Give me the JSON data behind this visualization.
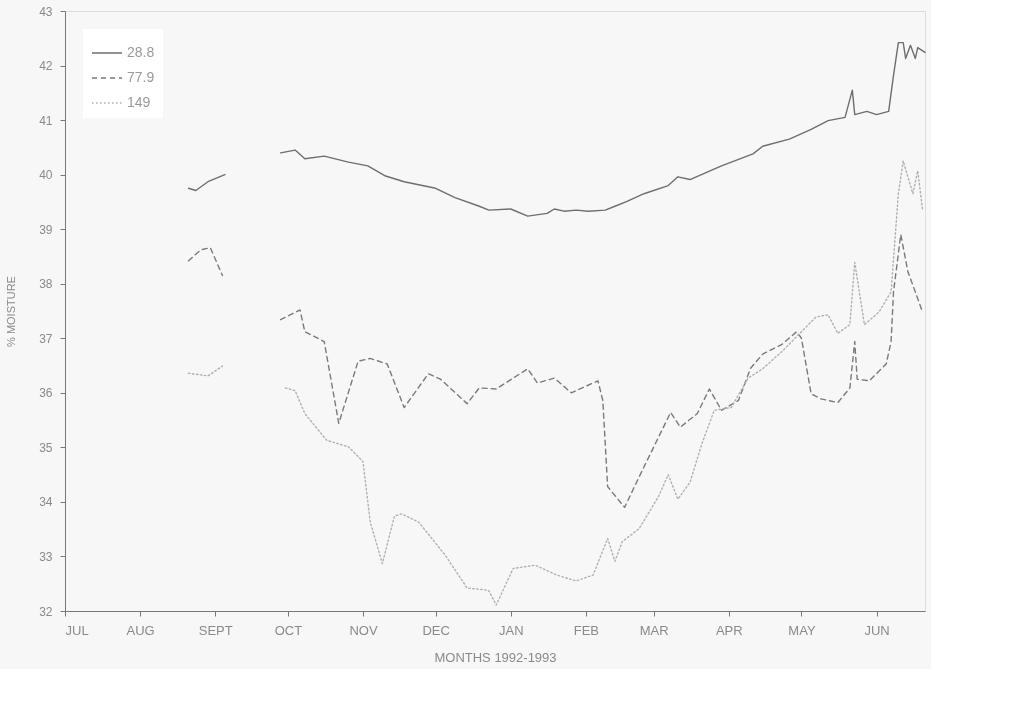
{
  "chart_data": {
    "type": "line",
    "xlabel": "MONTHS 1992-1993",
    "ylabel": "% MOISTURE",
    "xlim": [
      "1992-07-01",
      "1993-06-21"
    ],
    "ylim": [
      32,
      43
    ],
    "xticks": [
      {
        "value": "1992-07-01",
        "label": "JUL"
      },
      {
        "value": "1992-08-01",
        "label": "AUG"
      },
      {
        "value": "1992-09-01",
        "label": "SEPT"
      },
      {
        "value": "1992-10-01",
        "label": "OCT"
      },
      {
        "value": "1992-11-01",
        "label": "NOV"
      },
      {
        "value": "1992-12-01",
        "label": "DEC"
      },
      {
        "value": "1993-01-01",
        "label": "JAN"
      },
      {
        "value": "1993-02-01",
        "label": "FEB"
      },
      {
        "value": "1993-03-01",
        "label": "MAR"
      },
      {
        "value": "1993-04-01",
        "label": "APR"
      },
      {
        "value": "1993-05-01",
        "label": "MAY"
      },
      {
        "value": "1993-06-01",
        "label": "JUN"
      }
    ],
    "yticks": [
      32,
      33,
      34,
      35,
      36,
      37,
      38,
      39,
      40,
      41,
      42,
      43
    ],
    "grid": false,
    "legend": "top left",
    "marker": "none",
    "series": [
      {
        "name": "28.8",
        "color": "#6e6e6e",
        "line_style": "solid",
        "x": [
          "1992-08-21",
          "1992-08-24",
          "1992-08-29",
          "1992-09-05",
          "1992-09-16",
          "1992-09-28",
          "1992-10-04",
          "1992-10-08",
          "1992-10-16",
          "1992-10-26",
          "1992-11-03",
          "1992-11-10",
          "1992-11-18",
          "1992-12-01",
          "1992-12-09",
          "1992-12-19",
          "1992-12-23",
          "1993-01-01",
          "1993-01-08",
          "1993-01-16",
          "1993-01-19",
          "1993-01-23",
          "1993-01-28",
          "1993-02-02",
          "1993-02-09",
          "1993-02-13",
          "1993-02-18",
          "1993-02-25",
          "1993-03-07",
          "1993-03-11",
          "1993-03-16",
          "1993-03-29",
          "1993-04-11",
          "1993-04-15",
          "1993-04-26",
          "1993-05-05",
          "1993-05-12",
          "1993-05-19",
          "1993-05-22",
          "1993-05-23",
          "1993-05-28",
          "1993-06-01",
          "1993-06-06",
          "1993-06-08",
          "1993-06-10",
          "1993-06-12",
          "1993-06-13",
          "1993-06-15",
          "1993-06-17",
          "1993-06-18",
          "1993-06-21"
        ],
        "values": [
          39.75,
          39.71,
          39.87,
          40.0,
          null,
          40.4,
          40.45,
          40.29,
          40.34,
          40.23,
          40.16,
          39.98,
          39.87,
          39.75,
          39.58,
          39.42,
          39.35,
          39.37,
          39.24,
          39.29,
          39.37,
          39.33,
          39.35,
          39.33,
          39.35,
          39.42,
          39.51,
          39.65,
          39.8,
          39.96,
          39.91,
          40.16,
          40.38,
          40.52,
          40.65,
          40.83,
          40.99,
          41.05,
          41.55,
          41.1,
          41.16,
          41.1,
          41.16,
          41.82,
          42.42,
          42.42,
          42.13,
          42.37,
          42.13,
          42.33,
          42.24
        ]
      },
      {
        "name": "77.9",
        "color": "#7a7a7a",
        "line_style": "dashed",
        "x": [
          "1992-08-21",
          "1992-08-26",
          "1992-08-30",
          "1992-09-04",
          "1992-09-16",
          "1992-09-28",
          "1992-10-06",
          "1992-10-08",
          "1992-10-16",
          "1992-10-22",
          "1992-10-30",
          "1992-11-04",
          "1992-11-11",
          "1992-11-18",
          "1992-11-28",
          "1992-12-03",
          "1992-12-14",
          "1992-12-19",
          "1992-12-26",
          "1993-01-08",
          "1993-01-12",
          "1993-01-19",
          "1993-01-26",
          "1993-02-06",
          "1993-02-08",
          "1993-02-10",
          "1993-02-17",
          "1993-02-23",
          "1993-03-08",
          "1993-03-12",
          "1993-03-19",
          "1993-03-24",
          "1993-03-29",
          "1993-04-05",
          "1993-04-10",
          "1993-04-15",
          "1993-04-23",
          "1993-04-29",
          "1993-05-01",
          "1993-05-05",
          "1993-05-09",
          "1993-05-16",
          "1993-05-21",
          "1993-05-23",
          "1993-05-24",
          "1993-05-29",
          "1993-06-05",
          "1993-06-07",
          "1993-06-08",
          "1993-06-11",
          "1993-06-14",
          "1993-06-17",
          "1993-06-20"
        ],
        "values": [
          38.42,
          38.62,
          38.66,
          38.15,
          null,
          37.34,
          37.52,
          37.12,
          36.94,
          35.44,
          36.58,
          36.63,
          36.53,
          35.73,
          36.35,
          36.25,
          35.8,
          36.09,
          36.07,
          36.44,
          36.18,
          36.27,
          36.0,
          36.22,
          35.86,
          34.28,
          33.9,
          34.46,
          35.64,
          35.37,
          35.62,
          36.07,
          35.68,
          35.86,
          36.45,
          36.71,
          36.89,
          37.12,
          37.0,
          35.98,
          35.89,
          35.82,
          36.09,
          36.94,
          36.25,
          36.22,
          36.53,
          36.94,
          37.85,
          38.9,
          38.21,
          37.85,
          37.48
        ]
      },
      {
        "name": "149",
        "color": "#b0b0b0",
        "line_style": "dotted",
        "x": [
          "1992-08-21",
          "1992-08-29",
          "1992-09-04",
          "1992-09-16",
          "1992-09-30",
          "1992-10-04",
          "1992-10-08",
          "1992-10-17",
          "1992-10-26",
          "1992-11-01",
          "1992-11-04",
          "1992-11-09",
          "1992-11-14",
          "1992-11-17",
          "1992-11-24",
          "1992-12-05",
          "1992-12-14",
          "1992-12-21",
          "1992-12-23",
          "1992-12-26",
          "1993-01-02",
          "1993-01-11",
          "1993-01-20",
          "1993-01-28",
          "1993-02-04",
          "1993-02-10",
          "1993-02-13",
          "1993-02-16",
          "1993-02-23",
          "1993-03-03",
          "1993-03-07",
          "1993-03-11",
          "1993-03-16",
          "1993-03-21",
          "1993-03-26",
          "1993-04-02",
          "1993-04-09",
          "1993-04-15",
          "1993-04-23",
          "1993-05-01",
          "1993-05-07",
          "1993-05-12",
          "1993-05-16",
          "1993-05-21",
          "1993-05-23",
          "1993-05-27",
          "1993-06-02",
          "1993-06-07",
          "1993-06-10",
          "1993-06-12",
          "1993-06-16",
          "1993-06-18",
          "1993-06-20"
        ],
        "values": [
          36.36,
          36.31,
          36.49,
          null,
          36.09,
          36.04,
          35.62,
          35.13,
          35.01,
          34.74,
          33.63,
          32.87,
          33.74,
          33.78,
          33.63,
          33.02,
          32.42,
          32.39,
          32.37,
          32.11,
          32.78,
          32.84,
          32.66,
          32.55,
          32.66,
          33.33,
          32.91,
          33.27,
          33.51,
          34.1,
          34.5,
          34.05,
          34.36,
          35.08,
          35.68,
          35.73,
          36.27,
          36.44,
          36.76,
          37.12,
          37.39,
          37.43,
          37.09,
          37.25,
          38.39,
          37.25,
          37.48,
          37.85,
          39.65,
          40.25,
          39.65,
          40.07,
          39.35
        ]
      }
    ]
  }
}
